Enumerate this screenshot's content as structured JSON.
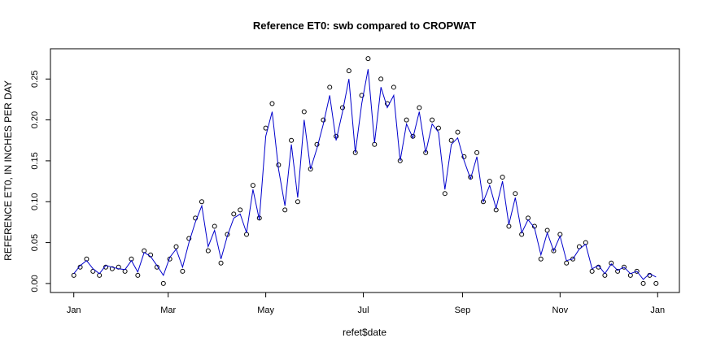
{
  "chart_data": {
    "type": "line_points",
    "title": "Reference ET0: swb compared to CROPWAT",
    "xlabel": "refet$date",
    "ylabel": "REFERENCE ET0, IN INCHES PER DAY",
    "x": [
      1,
      5,
      9,
      13,
      17,
      21,
      25,
      29,
      33,
      37,
      41,
      45,
      49,
      53,
      57,
      61,
      65,
      69,
      73,
      77,
      81,
      85,
      89,
      93,
      97,
      101,
      105,
      109,
      113,
      117,
      121,
      125,
      129,
      133,
      137,
      141,
      145,
      149,
      153,
      157,
      161,
      165,
      169,
      173,
      177,
      181,
      185,
      189,
      193,
      197,
      201,
      205,
      209,
      213,
      217,
      221,
      225,
      229,
      233,
      237,
      241,
      245,
      249,
      253,
      257,
      261,
      265,
      269,
      273,
      277,
      281,
      285,
      289,
      293,
      297,
      301,
      305,
      309,
      313,
      317,
      321,
      325,
      329,
      333,
      337,
      341,
      345,
      349,
      353,
      357,
      361,
      365
    ],
    "series": [
      {
        "color": "#000000",
        "marker": "circle",
        "values": [
          0.01,
          0.02,
          0.03,
          0.015,
          0.01,
          0.02,
          0.018,
          0.02,
          0.015,
          0.03,
          0.01,
          0.04,
          0.035,
          0.02,
          0.0,
          0.03,
          0.045,
          0.015,
          0.055,
          0.08,
          0.1,
          0.04,
          0.07,
          0.025,
          0.06,
          0.085,
          0.09,
          0.06,
          0.12,
          0.08,
          0.19,
          0.22,
          0.145,
          0.09,
          0.175,
          0.1,
          0.21,
          0.14,
          0.17,
          0.2,
          0.24,
          0.18,
          0.215,
          0.26,
          0.16,
          0.23,
          0.275,
          0.17,
          0.25,
          0.22,
          0.24,
          0.15,
          0.2,
          0.18,
          0.215,
          0.16,
          0.2,
          0.19,
          0.11,
          0.175,
          0.185,
          0.155,
          0.13,
          0.16,
          0.1,
          0.125,
          0.09,
          0.13,
          0.07,
          0.11,
          0.06,
          0.08,
          0.07,
          0.03,
          0.065,
          0.04,
          0.06,
          0.025,
          0.03,
          0.045,
          0.05,
          0.015,
          0.02,
          0.01,
          0.025,
          0.015,
          0.02,
          0.01,
          0.015,
          0.0,
          0.01,
          0.0
        ]
      },
      {
        "color": "#0000cc",
        "marker": "line",
        "values": [
          0.012,
          0.022,
          0.028,
          0.018,
          0.012,
          0.022,
          0.02,
          0.018,
          0.017,
          0.028,
          0.014,
          0.038,
          0.033,
          0.022,
          0.01,
          0.032,
          0.042,
          0.02,
          0.05,
          0.075,
          0.095,
          0.045,
          0.065,
          0.03,
          0.058,
          0.08,
          0.085,
          0.062,
          0.115,
          0.078,
          0.18,
          0.21,
          0.14,
          0.095,
          0.17,
          0.105,
          0.2,
          0.14,
          0.165,
          0.195,
          0.23,
          0.175,
          0.21,
          0.25,
          0.16,
          0.22,
          0.262,
          0.172,
          0.24,
          0.215,
          0.23,
          0.15,
          0.195,
          0.178,
          0.21,
          0.16,
          0.195,
          0.185,
          0.115,
          0.17,
          0.178,
          0.15,
          0.128,
          0.155,
          0.1,
          0.12,
          0.092,
          0.125,
          0.072,
          0.105,
          0.062,
          0.078,
          0.068,
          0.035,
          0.062,
          0.04,
          0.058,
          0.028,
          0.03,
          0.042,
          0.048,
          0.018,
          0.022,
          0.012,
          0.024,
          0.016,
          0.02,
          0.012,
          0.015,
          0.005,
          0.012,
          0.008
        ]
      }
    ],
    "xlim": [
      -13.6,
      379.6
    ],
    "xticks": [
      {
        "value": 1,
        "label": "Jan"
      },
      {
        "value": 60,
        "label": "Mar"
      },
      {
        "value": 121,
        "label": "May"
      },
      {
        "value": 182,
        "label": "Jul"
      },
      {
        "value": 244,
        "label": "Sep"
      },
      {
        "value": 305,
        "label": "Nov"
      },
      {
        "value": 366,
        "label": "Jan"
      }
    ],
    "ylim": [
      -0.011,
      0.287
    ],
    "yticks": [
      {
        "value": 0,
        "label": "0.00"
      },
      {
        "value": 0.05,
        "label": "0.05"
      },
      {
        "value": 0.1,
        "label": "0.10"
      },
      {
        "value": 0.15,
        "label": "0.15"
      },
      {
        "value": 0.2,
        "label": "0.20"
      },
      {
        "value": 0.25,
        "label": "0.25"
      }
    ]
  }
}
